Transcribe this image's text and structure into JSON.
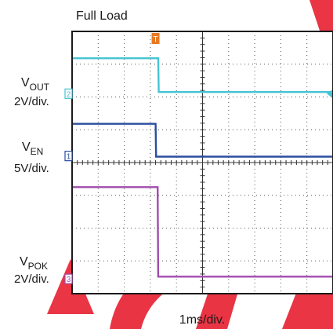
{
  "chart_data": {
    "type": "line",
    "title": "Full Load",
    "xlabel": "1ms/div.",
    "x_divisions": 10,
    "y_divisions": 8,
    "grid": true,
    "trigger_marker": "T",
    "trigger_time_div": 3.2,
    "series": [
      {
        "id": "vout",
        "channel": "2",
        "name": "V",
        "subscript": "OUT",
        "scale": "2V/div.",
        "color": "#45c4d4",
        "ref_div": 6.1,
        "points": [
          [
            0,
            7.18
          ],
          [
            3.3,
            7.18
          ],
          [
            3.32,
            6.15
          ],
          [
            10,
            6.15
          ]
        ]
      },
      {
        "id": "ven",
        "channel": "1",
        "name": "V",
        "subscript": "EN",
        "scale": "5V/div.",
        "color": "#2b4ea0",
        "ref_div": 4.2,
        "points": [
          [
            0,
            5.18
          ],
          [
            3.2,
            5.18
          ],
          [
            3.22,
            4.18
          ],
          [
            10,
            4.18
          ]
        ]
      },
      {
        "id": "vpok",
        "channel": "3",
        "name": "V",
        "subscript": "POK",
        "scale": "2V/div.",
        "color": "#a04cae",
        "ref_div": 0.45,
        "points": [
          [
            0,
            3.25
          ],
          [
            3.28,
            3.25
          ],
          [
            3.3,
            0.52
          ],
          [
            10,
            0.52
          ]
        ]
      }
    ]
  },
  "colors": {
    "trigger": "#e87a25",
    "watermark": "#e82a3a"
  }
}
